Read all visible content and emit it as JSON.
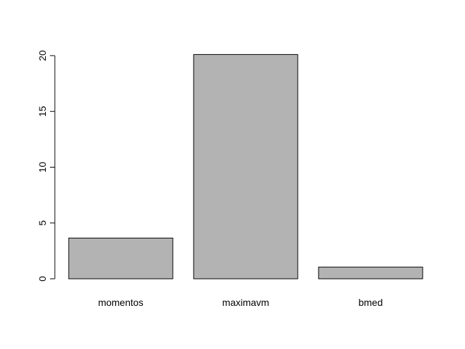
{
  "chart_data": {
    "type": "bar",
    "title": "",
    "xlabel": "",
    "ylabel": "",
    "categories": [
      "momentos",
      "maximavm",
      "bmed"
    ],
    "values": [
      3.65,
      20.1,
      1.05
    ],
    "ylim": [
      0,
      20
    ],
    "yticks": [
      0,
      5,
      10,
      15,
      20
    ],
    "grid": false,
    "legend": "none",
    "colors": {
      "bar_fill": "#b3b3b3",
      "bar_stroke": "#000000",
      "axis": "#000000"
    }
  }
}
